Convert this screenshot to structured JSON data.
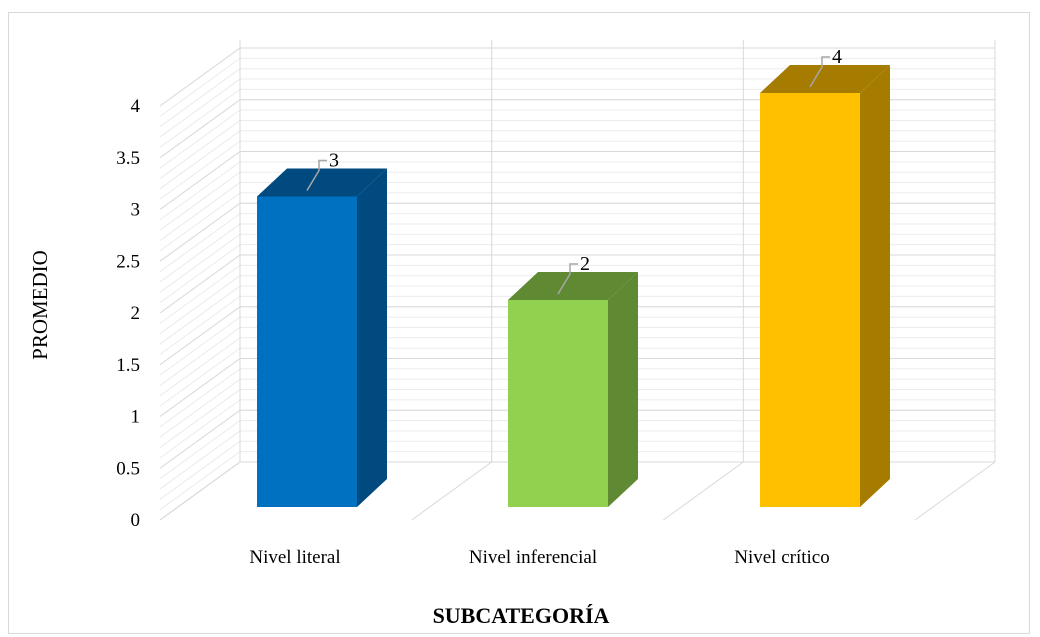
{
  "chart_data": {
    "type": "bar",
    "title": "",
    "xlabel": "SUBCATEGORÍA",
    "ylabel": "PROMEDIO",
    "categories": [
      "Nivel literal",
      "Nivel inferencial",
      "Nivel crítico"
    ],
    "values": [
      3,
      2,
      4
    ],
    "data_labels": [
      "3",
      "2",
      "4"
    ],
    "ylim": [
      0,
      4
    ],
    "y_ticks": [
      "0",
      "0.5",
      "1",
      "1.5",
      "2",
      "2.5",
      "3",
      "3.5",
      "4"
    ],
    "grid": true,
    "style": "3d-column",
    "colors": {
      "bars": [
        "#0070C0",
        "#92D050",
        "#FFC000"
      ],
      "bar_sides": [
        "#004A80",
        "#5F8A33",
        "#A67C00"
      ],
      "grid": "#d9d9d9"
    }
  }
}
